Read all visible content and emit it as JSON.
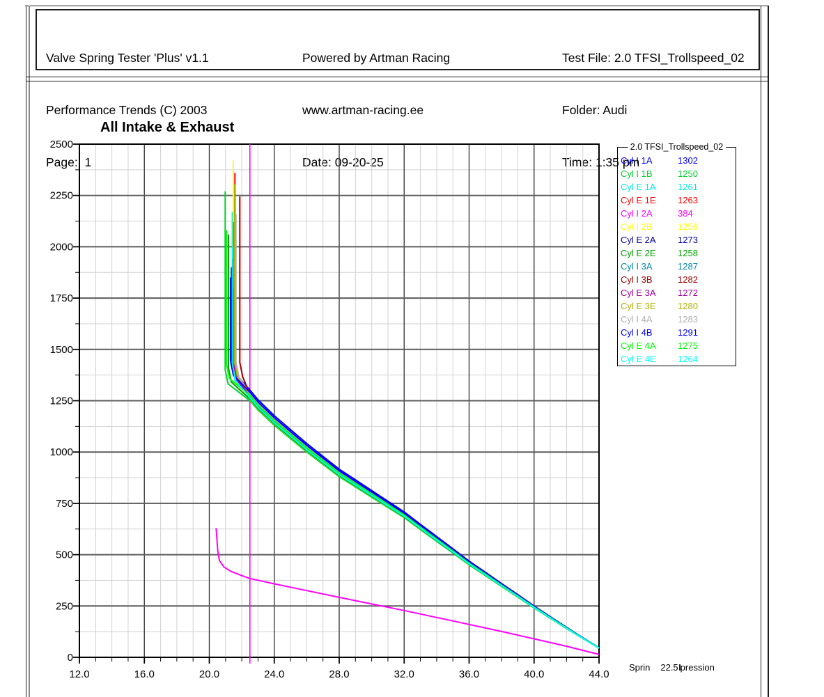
{
  "header": {
    "col1": [
      "Valve Spring Tester 'Plus' v1.1",
      "Performance Trends (C) 2003",
      "Page:  1"
    ],
    "col2": [
      "Powered by Artman Racing",
      "www.artman-racing.ee",
      "Date: 09-20-25"
    ],
    "col3": [
      "Test File: 2.0 TFSI_Trollspeed_02",
      "Folder: Audi",
      "Time: 1:35 pm"
    ]
  },
  "footer": {
    "left": "Sprin",
    "cursor": "22.5",
    "right": "pression"
  },
  "chart_data": {
    "type": "line",
    "title": "All Intake & Exhaust",
    "legend_title": "2.0 TFSI_Trollspeed_02",
    "xlabel": "Spring Compression",
    "cursor_x": 22.5,
    "cursor_color": "#FF00FF",
    "x_range": [
      12,
      44
    ],
    "x_major_step": 4,
    "x_minor_step": 1,
    "y_range": [
      0,
      2500
    ],
    "y_major_step": 250,
    "y_minor_step": 125,
    "x_tick_labels": [
      "12.0",
      "16.0",
      "20.0",
      "24.0",
      "28.0",
      "32.0",
      "36.0",
      "40.0",
      "44.0"
    ],
    "y_tick_labels": [
      "0",
      "250",
      "500",
      "750",
      "1000",
      "1250",
      "1500",
      "1750",
      "2000",
      "2250",
      "2500"
    ],
    "grid": true,
    "legend_position": "right",
    "common_curve": [
      [
        23,
        1205
      ],
      [
        24,
        1130
      ],
      [
        25,
        1065
      ],
      [
        26,
        1000
      ],
      [
        27,
        940
      ],
      [
        28,
        880
      ],
      [
        29,
        830
      ],
      [
        30,
        780
      ],
      [
        31,
        730
      ],
      [
        32,
        680
      ],
      [
        33,
        622
      ],
      [
        34,
        565
      ],
      [
        35,
        508
      ],
      [
        36,
        450
      ],
      [
        37,
        398
      ],
      [
        38,
        345
      ],
      [
        39,
        293
      ],
      [
        40,
        240
      ],
      [
        41,
        190
      ],
      [
        42,
        140
      ],
      [
        43,
        92
      ],
      [
        44,
        45
      ]
    ],
    "series": [
      {
        "name": "Cyl I 1A",
        "value_at_cursor": 1302,
        "color": "#0000FF",
        "spike_x": 21.36,
        "spike_top": 1900
      },
      {
        "name": "Cyl I 1B",
        "value_at_cursor": 1250,
        "color": "#00D22C",
        "spike_x": 20.98,
        "spike_top": 2270
      },
      {
        "name": "Cyl E 1A",
        "value_at_cursor": 1261,
        "color": "#00E8E8",
        "spike_x": 21.42,
        "spike_top": 2170
      },
      {
        "name": "Cyl E 1E",
        "value_at_cursor": 1263,
        "color": "#FF0000",
        "spike_x": 21.58,
        "spike_top": 2360
      },
      {
        "name": "Cyl I 2A",
        "value_at_cursor": 384,
        "color": "#FF00FF",
        "low_curve": [
          [
            20.42,
            630
          ],
          [
            20.52,
            520
          ],
          [
            20.62,
            472
          ],
          [
            20.9,
            440
          ],
          [
            21.3,
            420
          ],
          [
            22.0,
            398
          ],
          [
            22.5,
            384
          ],
          [
            24,
            358
          ],
          [
            26,
            325
          ],
          [
            28,
            292
          ],
          [
            30,
            260
          ],
          [
            32,
            228
          ],
          [
            34,
            194
          ],
          [
            36,
            160
          ],
          [
            38,
            126
          ],
          [
            40,
            90
          ],
          [
            42,
            54
          ],
          [
            44,
            14
          ]
        ]
      },
      {
        "name": "Cyl I 2B",
        "value_at_cursor": 1256,
        "color": "#FFFF00",
        "spike_x": 21.48,
        "spike_top": 2420
      },
      {
        "name": "Cyl E 2A",
        "value_at_cursor": 1273,
        "color": "#0000A0",
        "spike_x": 21.44,
        "spike_top": 1940
      },
      {
        "name": "Cyl E 2E",
        "value_at_cursor": 1258,
        "color": "#00A000",
        "spike_x": 21.18,
        "spike_top": 2060
      },
      {
        "name": "Cyl I 3A",
        "value_at_cursor": 1287,
        "color": "#0088A8",
        "spike_x": 21.52,
        "spike_top": 2120
      },
      {
        "name": "Cyl I 3B",
        "value_at_cursor": 1282,
        "color": "#A00000",
        "spike_x": 21.88,
        "spike_top": 2245
      },
      {
        "name": "Cyl E 3A",
        "value_at_cursor": 1272,
        "color": "#A000A0",
        "spike_x": 21.5,
        "spike_top": 1800
      },
      {
        "name": "Cyl E 3E",
        "value_at_cursor": 1280,
        "color": "#B0B000",
        "spike_x": 21.56,
        "spike_top": 2305
      },
      {
        "name": "Cyl I 4A",
        "value_at_cursor": 1283,
        "color": "#B0B0B0",
        "spike_x": 21.64,
        "spike_top": 2160
      },
      {
        "name": "Cyl I 4B",
        "value_at_cursor": 1291,
        "color": "#0000FF",
        "spike_x": 21.3,
        "spike_top": 1850
      },
      {
        "name": "Cyl E 4A",
        "value_at_cursor": 1275,
        "color": "#00FF00",
        "spike_x": 21.06,
        "spike_top": 2080
      },
      {
        "name": "Cyl E 4E",
        "value_at_cursor": 1264,
        "color": "#00FFFF",
        "spike_x": 21.45,
        "spike_top": 2000
      }
    ]
  }
}
